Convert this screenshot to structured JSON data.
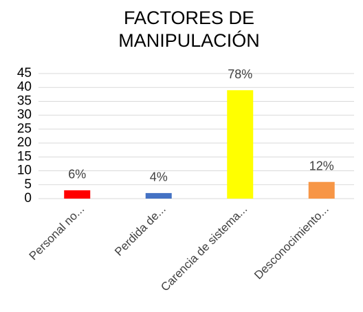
{
  "chart_data": {
    "type": "bar",
    "title": "FACTORES DE MANIPULACIÓN",
    "categories": [
      "Personal no...",
      "Perdida de...",
      "Carencia de sistema...",
      "Desconocimiento..."
    ],
    "values": [
      3,
      2,
      39,
      6
    ],
    "value_labels": [
      "6%",
      "4%",
      "78%",
      "12%"
    ],
    "colors": [
      "#ff0000",
      "#4472c4",
      "#ffff00",
      "#f79646"
    ],
    "ylim": [
      0,
      45
    ],
    "yticks": [
      0,
      5,
      10,
      15,
      20,
      25,
      30,
      35,
      40,
      45
    ],
    "grid": true
  }
}
